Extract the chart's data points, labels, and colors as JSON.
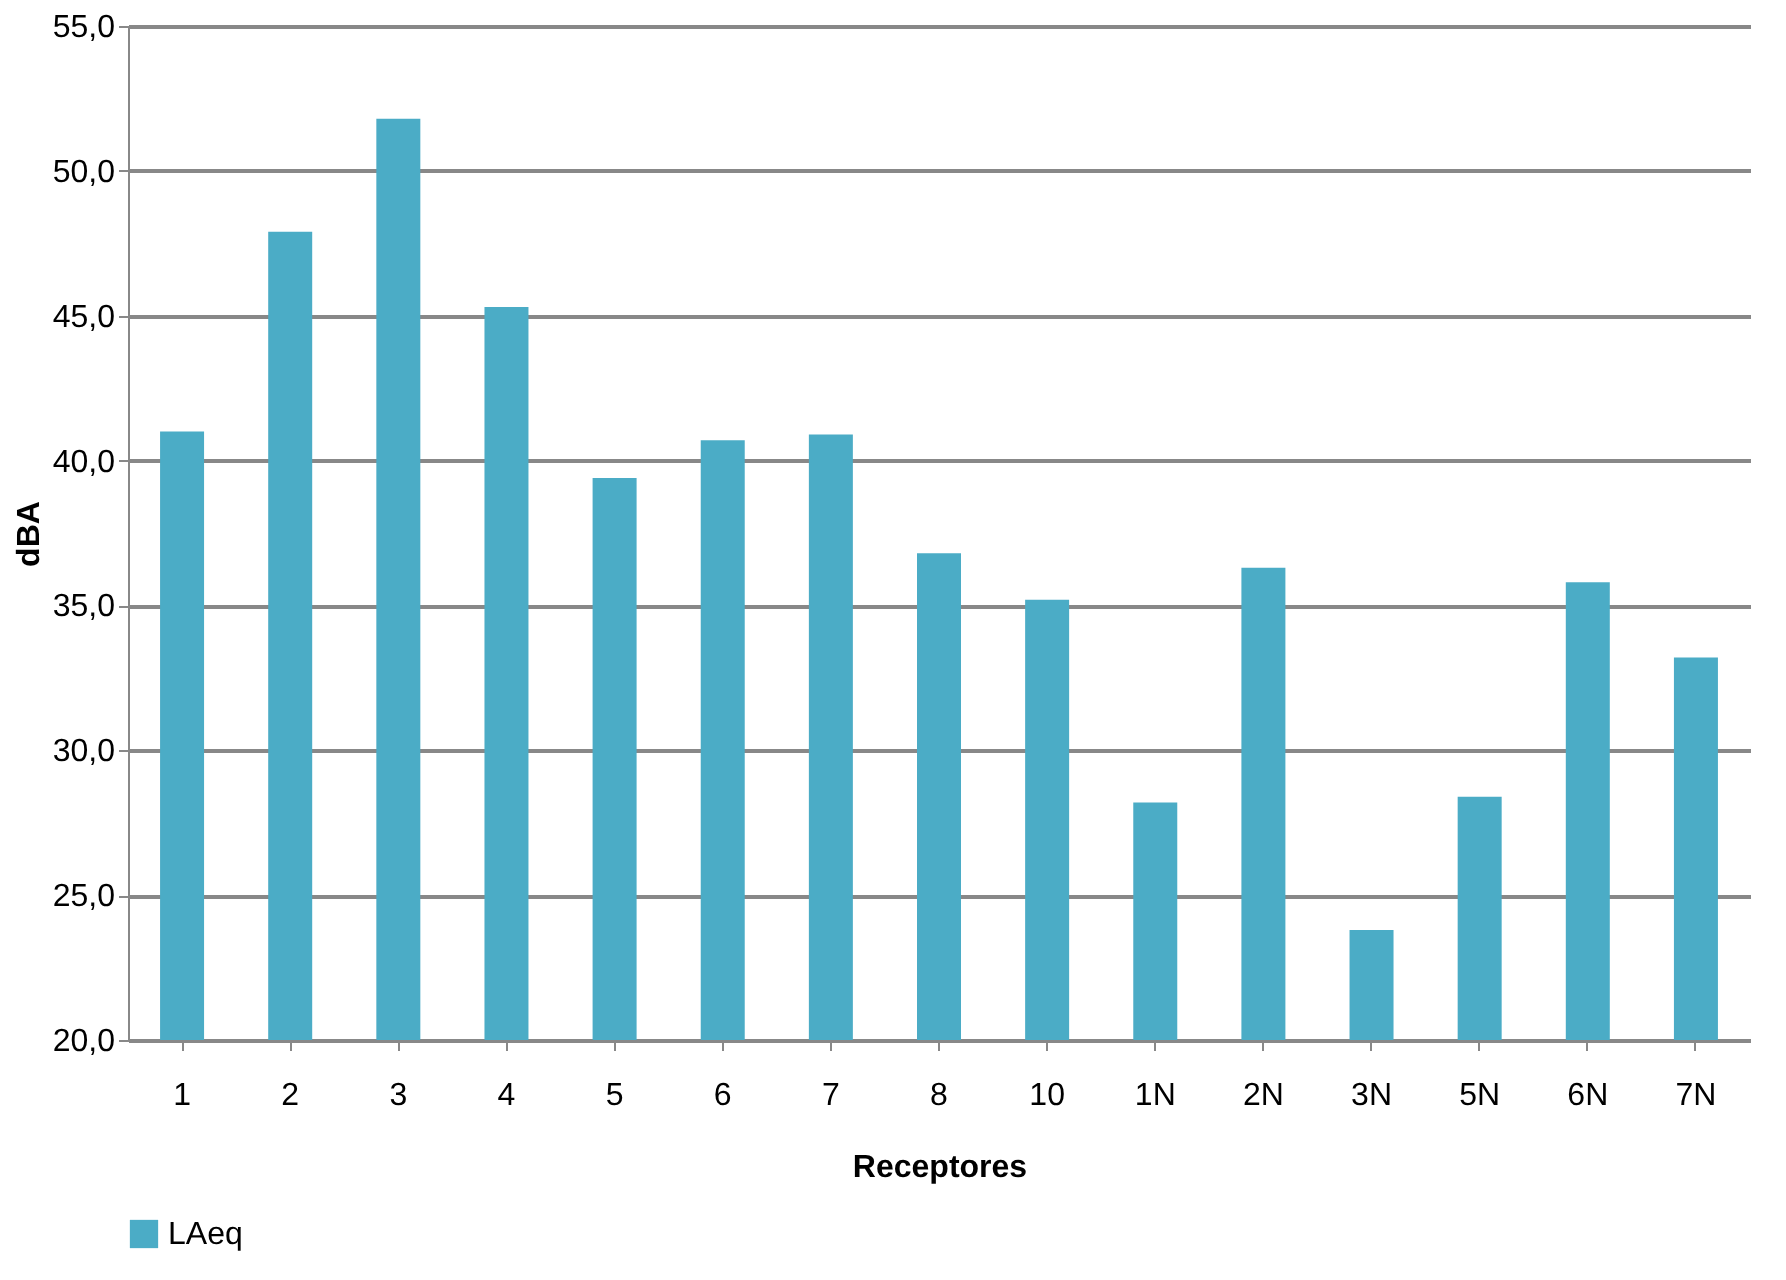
{
  "chart_data": {
    "type": "bar",
    "xlabel": "Receptores",
    "ylabel": "dBA",
    "categories": [
      "1",
      "2",
      "3",
      "4",
      "5",
      "6",
      "7",
      "8",
      "10",
      "1N",
      "2N",
      "3N",
      "5N",
      "6N",
      "7N"
    ],
    "series": [
      {
        "name": "LAeq",
        "color": "#4bacc6",
        "values": [
          41.0,
          47.9,
          51.8,
          45.3,
          39.4,
          40.7,
          40.9,
          36.8,
          35.2,
          28.2,
          36.3,
          23.8,
          28.4,
          35.8,
          33.2
        ]
      }
    ],
    "ylim": [
      20,
      55
    ],
    "yticks": [
      {
        "value": 20,
        "label": "20,0"
      },
      {
        "value": 25,
        "label": "25,0"
      },
      {
        "value": 30,
        "label": "30,0"
      },
      {
        "value": 35,
        "label": "35,0"
      },
      {
        "value": 40,
        "label": "40,0"
      },
      {
        "value": 45,
        "label": "45,0"
      },
      {
        "value": 50,
        "label": "50,0"
      },
      {
        "value": 55,
        "label": "55,0"
      }
    ],
    "grid": "y",
    "legend": "bottom"
  }
}
